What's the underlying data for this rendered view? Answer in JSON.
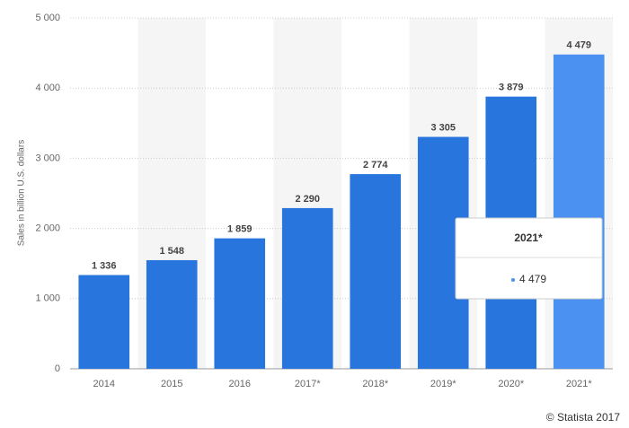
{
  "chart_data": {
    "type": "bar",
    "y_label": "Sales in billion U.S. dollars",
    "categories": [
      "2014",
      "2015",
      "2016",
      "2017*",
      "2018*",
      "2019*",
      "2020*",
      "2021*"
    ],
    "values": [
      1336,
      1548,
      1859,
      2290,
      2774,
      3305,
      3879,
      4479
    ],
    "value_labels": [
      "1 336",
      "1 548",
      "1 859",
      "2 290",
      "2 774",
      "3 305",
      "3 879",
      "4 479"
    ],
    "colors": [
      "#2876dd",
      "#2876dd",
      "#2876dd",
      "#2876dd",
      "#2876dd",
      "#2876dd",
      "#2876dd",
      "#4a91f2"
    ],
    "ylim": [
      0,
      5000
    ],
    "yticks": [
      0,
      {
        "value": 1000,
        "label": "1 000"
      },
      {
        "value": 2000,
        "label": "2 000"
      },
      {
        "value": 3000,
        "label": "3 000"
      },
      {
        "value": 4000,
        "label": "4 000"
      },
      {
        "value": 5000,
        "label": "5 000"
      }
    ],
    "grid": true,
    "credit": "© Statista 2017"
  }
}
